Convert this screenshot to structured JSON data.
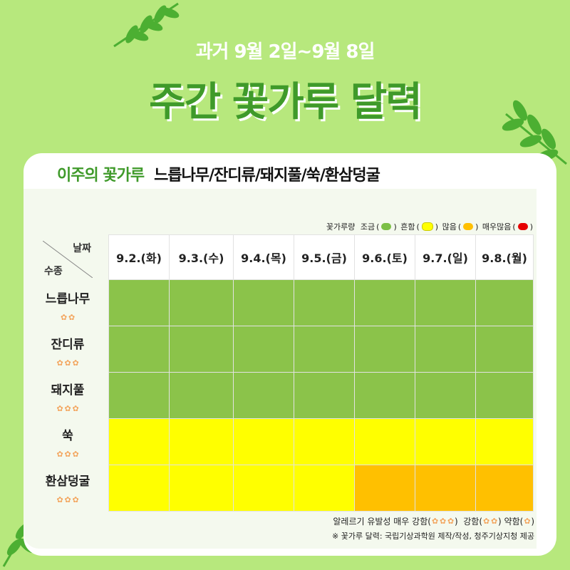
{
  "header": {
    "subtitle": "과거 9월 2일~9월 8일",
    "title": "주간 꽃가루 달력"
  },
  "headline": {
    "label": "이주의 꽃가루",
    "value": "느릅나무/잔디류/돼지풀/쑥/환삼덩굴"
  },
  "legend_top": {
    "prefix": "꽃가루량",
    "items": [
      {
        "label": "조금",
        "color": "#7bbf45"
      },
      {
        "label": "흔함",
        "color": "#ffff00"
      },
      {
        "label": "많음",
        "color": "#ffc000"
      },
      {
        "label": "매우많음",
        "color": "#e60000"
      }
    ]
  },
  "corner": {
    "top": "날짜",
    "bottom": "수종"
  },
  "dates": [
    "9.2.(화)",
    "9.3.(수)",
    "9.4.(목)",
    "9.5.(금)",
    "9.6.(토)",
    "9.7.(일)",
    "9.8.(월)"
  ],
  "levels": {
    "low": "#8bc34a",
    "common": "#ffff00",
    "high": "#ffc000"
  },
  "rows": [
    {
      "name": "느릅나무",
      "allergy_strength": 2,
      "levels": [
        "low",
        "low",
        "low",
        "low",
        "low",
        "low",
        "low"
      ]
    },
    {
      "name": "잔디류",
      "allergy_strength": 3,
      "levels": [
        "low",
        "low",
        "low",
        "low",
        "low",
        "low",
        "low"
      ]
    },
    {
      "name": "돼지풀",
      "allergy_strength": 3,
      "levels": [
        "low",
        "low",
        "low",
        "low",
        "low",
        "low",
        "low"
      ]
    },
    {
      "name": "쑥",
      "allergy_strength": 3,
      "levels": [
        "common",
        "common",
        "common",
        "common",
        "common",
        "common",
        "common"
      ]
    },
    {
      "name": "환삼덩굴",
      "allergy_strength": 3,
      "levels": [
        "common",
        "common",
        "common",
        "common",
        "high",
        "high",
        "high"
      ]
    }
  ],
  "legend_bottom": {
    "prefix": "알레르기 유발성 매우 강함(",
    "strong": "강함(",
    "weak": "약함(",
    "close": ")"
  },
  "credit": "※ 꽃가루 달력: 국립기상과학원 제작/작성, 청주기상지청 제공"
}
